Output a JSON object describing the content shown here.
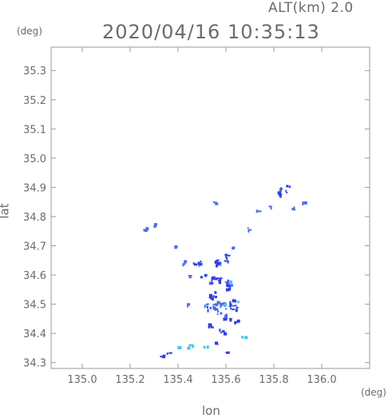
{
  "header": {
    "altitude_label": "ALT(km) 2.0",
    "timestamp": "2020/04/16 10:35:13",
    "y_unit": "(deg)",
    "x_unit": "(deg)"
  },
  "chart_data": {
    "type": "heatmap",
    "xlabel": "lon",
    "ylabel": "lat",
    "xlim": [
      134.87,
      136.2
    ],
    "ylim": [
      34.28,
      35.38
    ],
    "x_ticks": [
      135.0,
      135.2,
      135.4,
      135.6,
      135.8,
      136.0
    ],
    "x_tick_labels": [
      "135.0",
      "135.2",
      "135.4",
      "135.6",
      "135.8",
      "136.0"
    ],
    "y_ticks": [
      34.3,
      34.4,
      34.5,
      34.6,
      34.7,
      34.8,
      34.9,
      35.0,
      35.1,
      35.2,
      35.3
    ],
    "y_tick_labels": [
      "34.3",
      "34.4",
      "34.5",
      "34.6",
      "34.7",
      "34.8",
      "34.9",
      "35.0",
      "35.1",
      "35.2",
      "35.3"
    ],
    "colors": {
      "strong": "#2f3cf0",
      "medium": "#4a6df5",
      "light": "#46c8f0",
      "frame": "#9a9a9a"
    },
    "echoes": [
      {
        "lon": 135.83,
        "lat": 34.885,
        "r": 0.022,
        "level": "strong"
      },
      {
        "lon": 135.86,
        "lat": 34.91,
        "r": 0.01,
        "level": "strong"
      },
      {
        "lon": 135.88,
        "lat": 34.83,
        "r": 0.006,
        "level": "medium"
      },
      {
        "lon": 135.92,
        "lat": 34.85,
        "r": 0.005,
        "level": "medium"
      },
      {
        "lon": 135.78,
        "lat": 34.835,
        "r": 0.005,
        "level": "medium"
      },
      {
        "lon": 135.73,
        "lat": 34.82,
        "r": 0.005,
        "level": "medium"
      },
      {
        "lon": 135.69,
        "lat": 34.76,
        "r": 0.004,
        "level": "medium"
      },
      {
        "lon": 135.26,
        "lat": 34.76,
        "r": 0.006,
        "level": "medium"
      },
      {
        "lon": 135.3,
        "lat": 34.775,
        "r": 0.006,
        "level": "medium"
      },
      {
        "lon": 135.39,
        "lat": 34.7,
        "r": 0.005,
        "level": "medium"
      },
      {
        "lon": 135.42,
        "lat": 34.645,
        "r": 0.009,
        "level": "medium"
      },
      {
        "lon": 135.44,
        "lat": 34.6,
        "r": 0.006,
        "level": "medium"
      },
      {
        "lon": 135.48,
        "lat": 34.645,
        "r": 0.018,
        "level": "strong"
      },
      {
        "lon": 135.5,
        "lat": 34.6,
        "r": 0.012,
        "level": "strong"
      },
      {
        "lon": 135.56,
        "lat": 34.64,
        "r": 0.018,
        "level": "strong"
      },
      {
        "lon": 135.6,
        "lat": 34.66,
        "r": 0.018,
        "level": "strong"
      },
      {
        "lon": 135.63,
        "lat": 34.69,
        "r": 0.012,
        "level": "strong"
      },
      {
        "lon": 135.55,
        "lat": 34.585,
        "r": 0.025,
        "level": "strong"
      },
      {
        "lon": 135.6,
        "lat": 34.57,
        "r": 0.022,
        "level": "strong"
      },
      {
        "lon": 135.54,
        "lat": 34.535,
        "r": 0.02,
        "level": "strong"
      },
      {
        "lon": 135.57,
        "lat": 34.49,
        "r": 0.03,
        "level": "medium"
      },
      {
        "lon": 135.52,
        "lat": 34.49,
        "r": 0.018,
        "level": "strong"
      },
      {
        "lon": 135.63,
        "lat": 34.5,
        "r": 0.025,
        "level": "strong"
      },
      {
        "lon": 135.6,
        "lat": 34.455,
        "r": 0.018,
        "level": "strong"
      },
      {
        "lon": 135.53,
        "lat": 34.43,
        "r": 0.018,
        "level": "strong"
      },
      {
        "lon": 135.58,
        "lat": 34.41,
        "r": 0.015,
        "level": "strong"
      },
      {
        "lon": 135.64,
        "lat": 34.445,
        "r": 0.008,
        "level": "strong"
      },
      {
        "lon": 135.44,
        "lat": 34.5,
        "r": 0.006,
        "level": "medium"
      },
      {
        "lon": 135.56,
        "lat": 34.37,
        "r": 0.008,
        "level": "strong"
      },
      {
        "lon": 135.6,
        "lat": 34.335,
        "r": 0.008,
        "level": "strong"
      },
      {
        "lon": 135.67,
        "lat": 34.39,
        "r": 0.008,
        "level": "light"
      },
      {
        "lon": 135.55,
        "lat": 34.848,
        "r": 0.003,
        "level": "medium"
      },
      {
        "lon": 135.4,
        "lat": 34.355,
        "r": 0.012,
        "level": "light"
      },
      {
        "lon": 135.45,
        "lat": 34.36,
        "r": 0.014,
        "level": "light"
      },
      {
        "lon": 135.51,
        "lat": 34.355,
        "r": 0.012,
        "level": "light"
      },
      {
        "lon": 135.36,
        "lat": 34.33,
        "r": 0.01,
        "level": "strong"
      },
      {
        "lon": 135.33,
        "lat": 34.325,
        "r": 0.006,
        "level": "strong"
      }
    ]
  }
}
